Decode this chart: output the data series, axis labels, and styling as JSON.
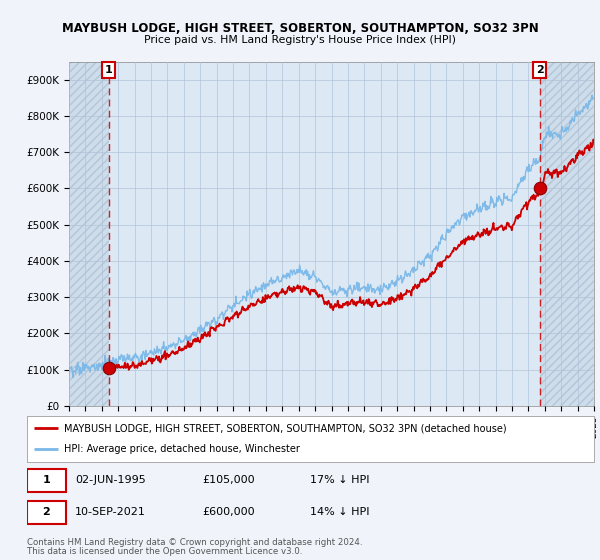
{
  "title1": "MAYBUSH LODGE, HIGH STREET, SOBERTON, SOUTHAMPTON, SO32 3PN",
  "title2": "Price paid vs. HM Land Registry's House Price Index (HPI)",
  "ylim": [
    0,
    950000
  ],
  "yticks": [
    0,
    100000,
    200000,
    300000,
    400000,
    500000,
    600000,
    700000,
    800000,
    900000
  ],
  "ytick_labels": [
    "£0",
    "£100K",
    "£200K",
    "£300K",
    "£400K",
    "£500K",
    "£600K",
    "£700K",
    "£800K",
    "£900K"
  ],
  "xlim_start": 1993,
  "xlim_end": 2025,
  "bg_color": "#f0f4fa",
  "plot_bg_color": "#dce9f5",
  "hpi_color": "#7ab8e8",
  "price_color": "#cc0000",
  "vline_color": "#cc0000",
  "annotation1_year": 1995.42,
  "annotation1_value": 105000,
  "annotation1_date": "02-JUN-1995",
  "annotation1_price": "£105,000",
  "annotation1_hpi": "17% ↓ HPI",
  "annotation2_year": 2021.69,
  "annotation2_value": 600000,
  "annotation2_date": "10-SEP-2021",
  "annotation2_price": "£600,000",
  "annotation2_hpi": "14% ↓ HPI",
  "legend_label1": "MAYBUSH LODGE, HIGH STREET, SOBERTON, SOUTHAMPTON, SO32 3PN (detached house)",
  "legend_label2": "HPI: Average price, detached house, Winchester",
  "footer1": "Contains HM Land Registry data © Crown copyright and database right 2024.",
  "footer2": "This data is licensed under the Open Government Licence v3.0.",
  "hpi_knots": [
    1993,
    1994,
    1995,
    1996,
    1997,
    1998,
    1999,
    2000,
    2001,
    2002,
    2003,
    2004,
    2005,
    2006,
    2007,
    2008,
    2009,
    2010,
    2011,
    2012,
    2013,
    2014,
    2015,
    2016,
    2017,
    2018,
    2019,
    2020,
    2021,
    2021.7,
    2022,
    2023,
    2024,
    2025
  ],
  "hpi_vals": [
    95000,
    105000,
    118000,
    130000,
    140000,
    155000,
    170000,
    195000,
    225000,
    260000,
    295000,
    330000,
    355000,
    375000,
    390000,
    375000,
    330000,
    340000,
    345000,
    340000,
    360000,
    390000,
    430000,
    490000,
    540000,
    565000,
    580000,
    590000,
    670000,
    700000,
    760000,
    760000,
    820000,
    860000
  ],
  "noise_seed": 12,
  "noise_scale": 6000
}
